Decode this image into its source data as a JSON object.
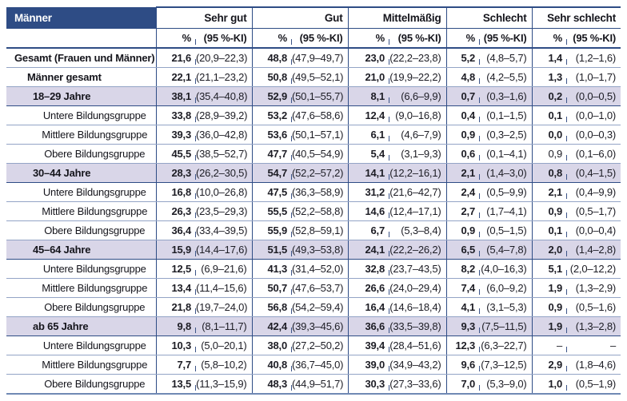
{
  "colors": {
    "navy": "#2e4c85",
    "lavender": "#d9d6e8",
    "rule": "#93a4c6",
    "tick": "#3c5487"
  },
  "header": {
    "corner": "Männer",
    "groups": [
      {
        "label": "Sehr gut"
      },
      {
        "label": "Gut"
      },
      {
        "label": "Mittelmäßig"
      },
      {
        "label": "Schlecht"
      },
      {
        "label": "Sehr schlecht"
      }
    ],
    "sub": {
      "pct": "%",
      "ki": "(95 %-KI)"
    }
  },
  "rows": [
    {
      "label": "Gesamt (Frauen und Männer)",
      "type": "grand",
      "cells": [
        {
          "pct": "21,6",
          "ki": "(20,9–22,3)"
        },
        {
          "pct": "48,8",
          "ki": "(47,9–49,7)"
        },
        {
          "pct": "23,0",
          "ki": "(22,2–23,8)"
        },
        {
          "pct": "5,2",
          "ki": "(4,8–5,7)"
        },
        {
          "pct": "1,4",
          "ki": "(1,2–1,6)"
        }
      ]
    },
    {
      "label": "Männer gesamt",
      "type": "total",
      "cells": [
        {
          "pct": "22,1",
          "ki": "(21,1–23,2)"
        },
        {
          "pct": "50,8",
          "ki": "(49,5–52,1)"
        },
        {
          "pct": "21,0",
          "ki": "(19,9–22,2)"
        },
        {
          "pct": "4,8",
          "ki": "(4,2–5,5)"
        },
        {
          "pct": "1,3",
          "ki": "(1,0–1,7)"
        }
      ]
    },
    {
      "label": "18–29 Jahre",
      "type": "age",
      "cells": [
        {
          "pct": "38,1",
          "ki": "(35,4–40,8)"
        },
        {
          "pct": "52,9",
          "ki": "(50,1–55,7)"
        },
        {
          "pct": "8,1",
          "ki": "(6,6–9,9)"
        },
        {
          "pct": "0,7",
          "ki": "(0,3–1,6)"
        },
        {
          "pct": "0,2",
          "ki": "(0,0–0,5)"
        }
      ]
    },
    {
      "label": "Untere Bildungsgruppe",
      "type": "edu",
      "cells": [
        {
          "pct": "33,8",
          "ki": "(28,9–39,2)"
        },
        {
          "pct": "53,2",
          "ki": "(47,6–58,6)"
        },
        {
          "pct": "12,4",
          "ki": "(9,0–16,8)"
        },
        {
          "pct": "0,4",
          "ki": "(0,1–1,5)"
        },
        {
          "pct": "0,1",
          "ki": "(0,0–1,0)"
        }
      ]
    },
    {
      "label": "Mittlere Bildungsgruppe",
      "type": "edu",
      "cells": [
        {
          "pct": "39,3",
          "ki": "(36,0–42,8)"
        },
        {
          "pct": "53,6",
          "ki": "(50,1–57,1)"
        },
        {
          "pct": "6,1",
          "ki": "(4,6–7,9)"
        },
        {
          "pct": "0,9",
          "ki": "(0,3–2,5)"
        },
        {
          "pct": "0,0",
          "ki": "(0,0–0,3)"
        }
      ]
    },
    {
      "label": "Obere Bildungsgruppe",
      "type": "edu",
      "cells": [
        {
          "pct": "45,5",
          "ki": "(38,5–52,7)"
        },
        {
          "pct": "47,7",
          "ki": "(40,5–54,9)"
        },
        {
          "pct": "5,4",
          "ki": "(3,1–9,3)"
        },
        {
          "pct": "0,6",
          "ki": "(0,1–4,1)"
        },
        {
          "pct": "0,9",
          "ki": "(0,1–6,0)",
          "light": true
        }
      ]
    },
    {
      "label": "30–44 Jahre",
      "type": "age",
      "cells": [
        {
          "pct": "28,3",
          "ki": "(26,2–30,5)"
        },
        {
          "pct": "54,7",
          "ki": "(52,2–57,2)"
        },
        {
          "pct": "14,1",
          "ki": "(12,2–16,1)"
        },
        {
          "pct": "2,1",
          "ki": "(1,4–3,0)"
        },
        {
          "pct": "0,8",
          "ki": "(0,4–1,5)"
        }
      ]
    },
    {
      "label": "Untere Bildungsgruppe",
      "type": "edu",
      "cells": [
        {
          "pct": "16,8",
          "ki": "(10,0–26,8)"
        },
        {
          "pct": "47,5",
          "ki": "(36,3–58,9)"
        },
        {
          "pct": "31,2",
          "ki": "(21,6–42,7)"
        },
        {
          "pct": "2,4",
          "ki": "(0,5–9,9)"
        },
        {
          "pct": "2,1",
          "ki": "(0,4–9,9)"
        }
      ]
    },
    {
      "label": "Mittlere Bildungsgruppe",
      "type": "edu",
      "cells": [
        {
          "pct": "26,3",
          "ki": "(23,5–29,3)"
        },
        {
          "pct": "55,5",
          "ki": "(52,2–58,8)"
        },
        {
          "pct": "14,6",
          "ki": "(12,4–17,1)"
        },
        {
          "pct": "2,7",
          "ki": "(1,7–4,1)"
        },
        {
          "pct": "0,9",
          "ki": "(0,5–1,7)"
        }
      ]
    },
    {
      "label": "Obere Bildungsgruppe",
      "type": "edu",
      "cells": [
        {
          "pct": "36,4",
          "ki": "(33,4–39,5)"
        },
        {
          "pct": "55,9",
          "ki": "(52,8–59,1)"
        },
        {
          "pct": "6,7",
          "ki": "(5,3–8,4)"
        },
        {
          "pct": "0,9",
          "ki": "(0,5–1,5)"
        },
        {
          "pct": "0,1",
          "ki": "(0,0–0,4)"
        }
      ]
    },
    {
      "label": "45–64 Jahre",
      "type": "age",
      "cells": [
        {
          "pct": "15,9",
          "ki": "(14,4–17,6)"
        },
        {
          "pct": "51,5",
          "ki": "(49,3–53,8)"
        },
        {
          "pct": "24,1",
          "ki": "(22,2–26,2)"
        },
        {
          "pct": "6,5",
          "ki": "(5,4–7,8)"
        },
        {
          "pct": "2,0",
          "ki": "(1,4–2,8)"
        }
      ]
    },
    {
      "label": "Untere Bildungsgruppe",
      "type": "edu",
      "cells": [
        {
          "pct": "12,5",
          "ki": "(6,9–21,6)"
        },
        {
          "pct": "41,3",
          "ki": "(31,4–52,0)"
        },
        {
          "pct": "32,8",
          "ki": "(23,7–43,5)"
        },
        {
          "pct": "8,2",
          "ki": "(4,0–16,3)"
        },
        {
          "pct": "5,1",
          "ki": "(2,0–12,2)"
        }
      ]
    },
    {
      "label": "Mittlere Bildungsgruppe",
      "type": "edu",
      "cells": [
        {
          "pct": "13,4",
          "ki": "(11,4–15,6)"
        },
        {
          "pct": "50,7",
          "ki": "(47,6–53,7)"
        },
        {
          "pct": "26,6",
          "ki": "(24,0–29,4)"
        },
        {
          "pct": "7,4",
          "ki": "(6,0–9,2)"
        },
        {
          "pct": "1,9",
          "ki": "(1,3–2,9)"
        }
      ]
    },
    {
      "label": "Obere Bildungsgruppe",
      "type": "edu",
      "cells": [
        {
          "pct": "21,8",
          "ki": "(19,7–24,0)"
        },
        {
          "pct": "56,8",
          "ki": "(54,2–59,4)"
        },
        {
          "pct": "16,4",
          "ki": "(14,6–18,4)"
        },
        {
          "pct": "4,1",
          "ki": "(3,1–5,3)"
        },
        {
          "pct": "0,9",
          "ki": "(0,5–1,6)"
        }
      ]
    },
    {
      "label": "ab 65 Jahre",
      "type": "age",
      "cells": [
        {
          "pct": "9,8",
          "ki": "(8,1–11,7)"
        },
        {
          "pct": "42,4",
          "ki": "(39,3–45,6)"
        },
        {
          "pct": "36,6",
          "ki": "(33,5–39,8)"
        },
        {
          "pct": "9,3",
          "ki": "(7,5–11,5)"
        },
        {
          "pct": "1,9",
          "ki": "(1,3–2,8)"
        }
      ]
    },
    {
      "label": "Untere Bildungsgruppe",
      "type": "edu",
      "cells": [
        {
          "pct": "10,3",
          "ki": "(5,0–20,1)"
        },
        {
          "pct": "38,0",
          "ki": "(27,2–50,2)"
        },
        {
          "pct": "39,4",
          "ki": "(28,4–51,6)"
        },
        {
          "pct": "12,3",
          "ki": "(6,3–22,7)"
        },
        {
          "pct": "–",
          "ki": "–",
          "light": true
        }
      ]
    },
    {
      "label": "Mittlere Bildungsgruppe",
      "type": "edu",
      "cells": [
        {
          "pct": "7,7",
          "ki": "(5,8–10,2)"
        },
        {
          "pct": "40,8",
          "ki": "(36,7–45,0)"
        },
        {
          "pct": "39,0",
          "ki": "(34,9–43,2)"
        },
        {
          "pct": "9,6",
          "ki": "(7,3–12,5)"
        },
        {
          "pct": "2,9",
          "ki": "(1,8–4,6)"
        }
      ]
    },
    {
      "label": "Obere Bildungsgruppe",
      "type": "edu",
      "cells": [
        {
          "pct": "13,5",
          "ki": "(11,3–15,9)"
        },
        {
          "pct": "48,3",
          "ki": "(44,9–51,7)"
        },
        {
          "pct": "30,3",
          "ki": "(27,3–33,6)"
        },
        {
          "pct": "7,0",
          "ki": "(5,3–9,0)"
        },
        {
          "pct": "1,0",
          "ki": "(0,5–1,9)"
        }
      ]
    }
  ]
}
